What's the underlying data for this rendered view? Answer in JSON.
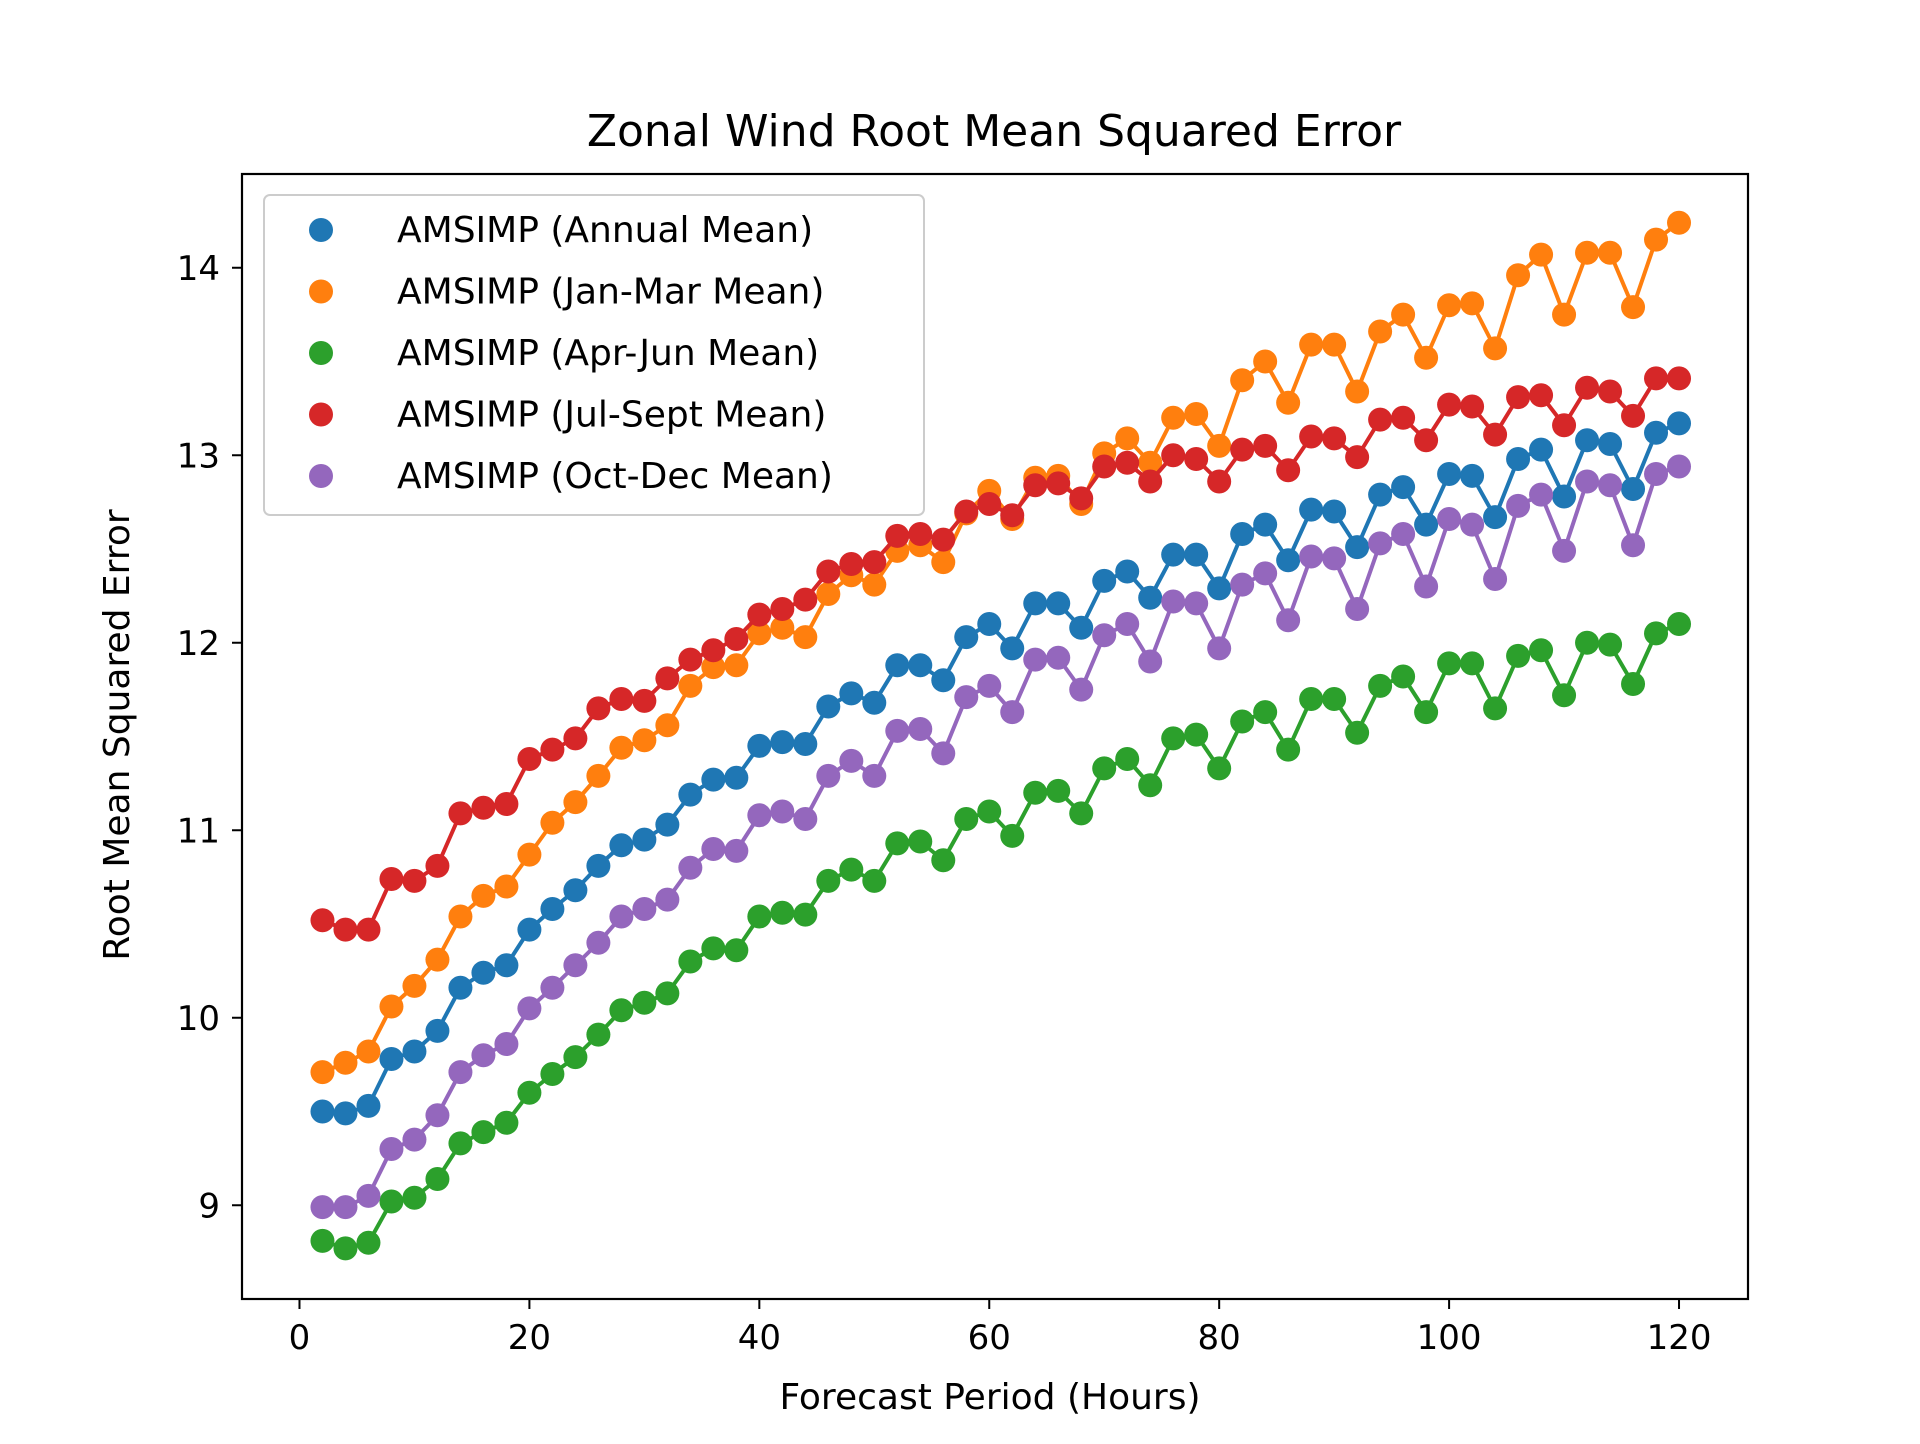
{
  "chart_data": {
    "type": "line",
    "title": "Zonal Wind Root Mean Squared Error",
    "xlabel": "Forecast Period (Hours)",
    "ylabel": "Root Mean Squared Error",
    "xlim": [
      -5,
      126
    ],
    "ylim": [
      8.5,
      14.5
    ],
    "xticks": [
      0,
      20,
      40,
      60,
      80,
      100,
      120
    ],
    "yticks": [
      9,
      10,
      11,
      12,
      13,
      14
    ],
    "grid": false,
    "legend_position": "upper-left",
    "x": [
      2,
      4,
      6,
      8,
      10,
      12,
      14,
      16,
      18,
      20,
      22,
      24,
      26,
      28,
      30,
      32,
      34,
      36,
      38,
      40,
      42,
      44,
      46,
      48,
      50,
      52,
      54,
      56,
      58,
      60,
      62,
      64,
      66,
      68,
      70,
      72,
      74,
      76,
      78,
      80,
      82,
      84,
      86,
      88,
      90,
      92,
      94,
      96,
      98,
      100,
      102,
      104,
      106,
      108,
      110,
      112,
      114,
      116,
      118,
      120
    ],
    "series": [
      {
        "name": "AMSIMP (Annual Mean)",
        "color": "#1f77b4",
        "values": [
          9.5,
          9.49,
          9.53,
          9.78,
          9.82,
          9.93,
          10.16,
          10.24,
          10.28,
          10.47,
          10.58,
          10.68,
          10.81,
          10.92,
          10.95,
          11.03,
          11.19,
          11.27,
          11.28,
          11.45,
          11.47,
          11.46,
          11.66,
          11.73,
          11.68,
          11.88,
          11.88,
          11.8,
          12.03,
          12.1,
          11.97,
          12.21,
          12.21,
          12.08,
          12.33,
          12.38,
          12.24,
          12.47,
          12.47,
          12.29,
          12.58,
          12.63,
          12.44,
          12.71,
          12.7,
          12.51,
          12.79,
          12.83,
          12.63,
          12.9,
          12.89,
          12.67,
          12.98,
          13.03,
          12.78,
          13.08,
          13.06,
          12.82,
          13.12,
          13.17
        ]
      },
      {
        "name": "AMSIMP (Jan-Mar Mean)",
        "color": "#ff7f0e",
        "values": [
          9.71,
          9.76,
          9.82,
          10.06,
          10.17,
          10.31,
          10.54,
          10.65,
          10.7,
          10.87,
          11.04,
          11.15,
          11.29,
          11.44,
          11.48,
          11.56,
          11.77,
          11.87,
          11.88,
          12.05,
          12.08,
          12.03,
          12.26,
          12.36,
          12.31,
          12.49,
          12.52,
          12.43,
          12.69,
          12.81,
          12.66,
          12.88,
          12.89,
          12.74,
          13.01,
          13.09,
          12.96,
          13.2,
          13.22,
          13.05,
          13.4,
          13.5,
          13.28,
          13.59,
          13.59,
          13.34,
          13.66,
          13.75,
          13.52,
          13.8,
          13.81,
          13.57,
          13.96,
          14.07,
          13.75,
          14.08,
          14.08,
          13.79,
          14.15,
          14.24
        ]
      },
      {
        "name": "AMSIMP (Apr-Jun Mean)",
        "color": "#2ca02c",
        "values": [
          8.81,
          8.77,
          8.8,
          9.02,
          9.04,
          9.14,
          9.33,
          9.39,
          9.44,
          9.6,
          9.7,
          9.79,
          9.91,
          10.04,
          10.08,
          10.13,
          10.3,
          10.37,
          10.36,
          10.54,
          10.56,
          10.55,
          10.73,
          10.79,
          10.73,
          10.93,
          10.94,
          10.84,
          11.06,
          11.1,
          10.97,
          11.2,
          11.21,
          11.09,
          11.33,
          11.38,
          11.24,
          11.49,
          11.51,
          11.33,
          11.58,
          11.63,
          11.43,
          11.7,
          11.7,
          11.52,
          11.77,
          11.82,
          11.63,
          11.89,
          11.89,
          11.65,
          11.93,
          11.96,
          11.72,
          12.0,
          11.99,
          11.78,
          12.05,
          12.1
        ]
      },
      {
        "name": "AMSIMP (Jul-Sept Mean)",
        "color": "#d62728",
        "values": [
          10.52,
          10.47,
          10.47,
          10.74,
          10.73,
          10.81,
          11.09,
          11.12,
          11.14,
          11.38,
          11.43,
          11.49,
          11.65,
          11.7,
          11.69,
          11.81,
          11.91,
          11.96,
          12.02,
          12.15,
          12.18,
          12.23,
          12.38,
          12.42,
          12.43,
          12.57,
          12.58,
          12.55,
          12.7,
          12.74,
          12.68,
          12.84,
          12.85,
          12.77,
          12.94,
          12.96,
          12.86,
          13.0,
          12.98,
          12.86,
          13.03,
          13.05,
          12.92,
          13.1,
          13.09,
          12.99,
          13.19,
          13.2,
          13.08,
          13.27,
          13.26,
          13.11,
          13.31,
          13.32,
          13.16,
          13.36,
          13.34,
          13.21,
          13.41,
          13.41
        ]
      },
      {
        "name": "AMSIMP (Oct-Dec Mean)",
        "color": "#9467bd",
        "values": [
          8.99,
          8.99,
          9.05,
          9.3,
          9.35,
          9.48,
          9.71,
          9.8,
          9.86,
          10.05,
          10.16,
          10.28,
          10.4,
          10.54,
          10.58,
          10.63,
          10.8,
          10.9,
          10.89,
          11.08,
          11.1,
          11.06,
          11.29,
          11.37,
          11.29,
          11.53,
          11.54,
          11.41,
          11.71,
          11.77,
          11.63,
          11.91,
          11.92,
          11.75,
          12.04,
          12.1,
          11.9,
          12.22,
          12.21,
          11.97,
          12.31,
          12.37,
          12.12,
          12.46,
          12.45,
          12.18,
          12.53,
          12.58,
          12.3,
          12.66,
          12.63,
          12.34,
          12.73,
          12.79,
          12.49,
          12.86,
          12.84,
          12.52,
          12.9,
          12.94
        ]
      }
    ]
  }
}
